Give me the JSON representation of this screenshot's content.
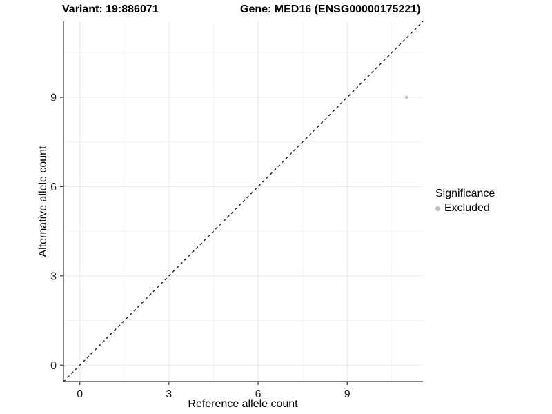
{
  "titles": {
    "variant": "Variant: 19:886071",
    "gene": "Gene: MED16 (ENSG00000175221)"
  },
  "legend": {
    "title": "Significance",
    "items": [
      {
        "label": "Excluded",
        "color": "#bebebe",
        "marker": "circle"
      }
    ]
  },
  "colors": {
    "background": "#ffffff",
    "grid_major": "#e8e8e8",
    "grid_minor": "#f4f4f4",
    "axis_line": "#333333",
    "tick_mark": "#333333",
    "tick_label": "#1a1a1a",
    "reference_line": "#000000",
    "point": "#bebebe"
  },
  "chart_data": {
    "type": "scatter",
    "title_left": "Variant: 19:886071",
    "title_right": "Gene: MED16 (ENSG00000175221)",
    "xlabel": "Reference allele count",
    "ylabel": "Alternative allele count",
    "xlim": [
      -0.55,
      11.55
    ],
    "ylim": [
      -0.55,
      11.55
    ],
    "x_ticks": [
      0,
      3,
      6,
      9
    ],
    "y_ticks": [
      0,
      3,
      6,
      9
    ],
    "x_minor_ticks": [
      1.5,
      4.5,
      7.5,
      10.5
    ],
    "y_minor_ticks": [
      1.5,
      4.5,
      7.5,
      10.5
    ],
    "grid": true,
    "legend_position": "right",
    "series": [
      {
        "name": "Excluded",
        "color": "#bebebe",
        "points": [
          {
            "x": 11,
            "y": 9
          }
        ]
      }
    ],
    "reference_line": {
      "type": "identity",
      "equation": "y = x",
      "style": "dashed",
      "color": "#000000"
    }
  }
}
